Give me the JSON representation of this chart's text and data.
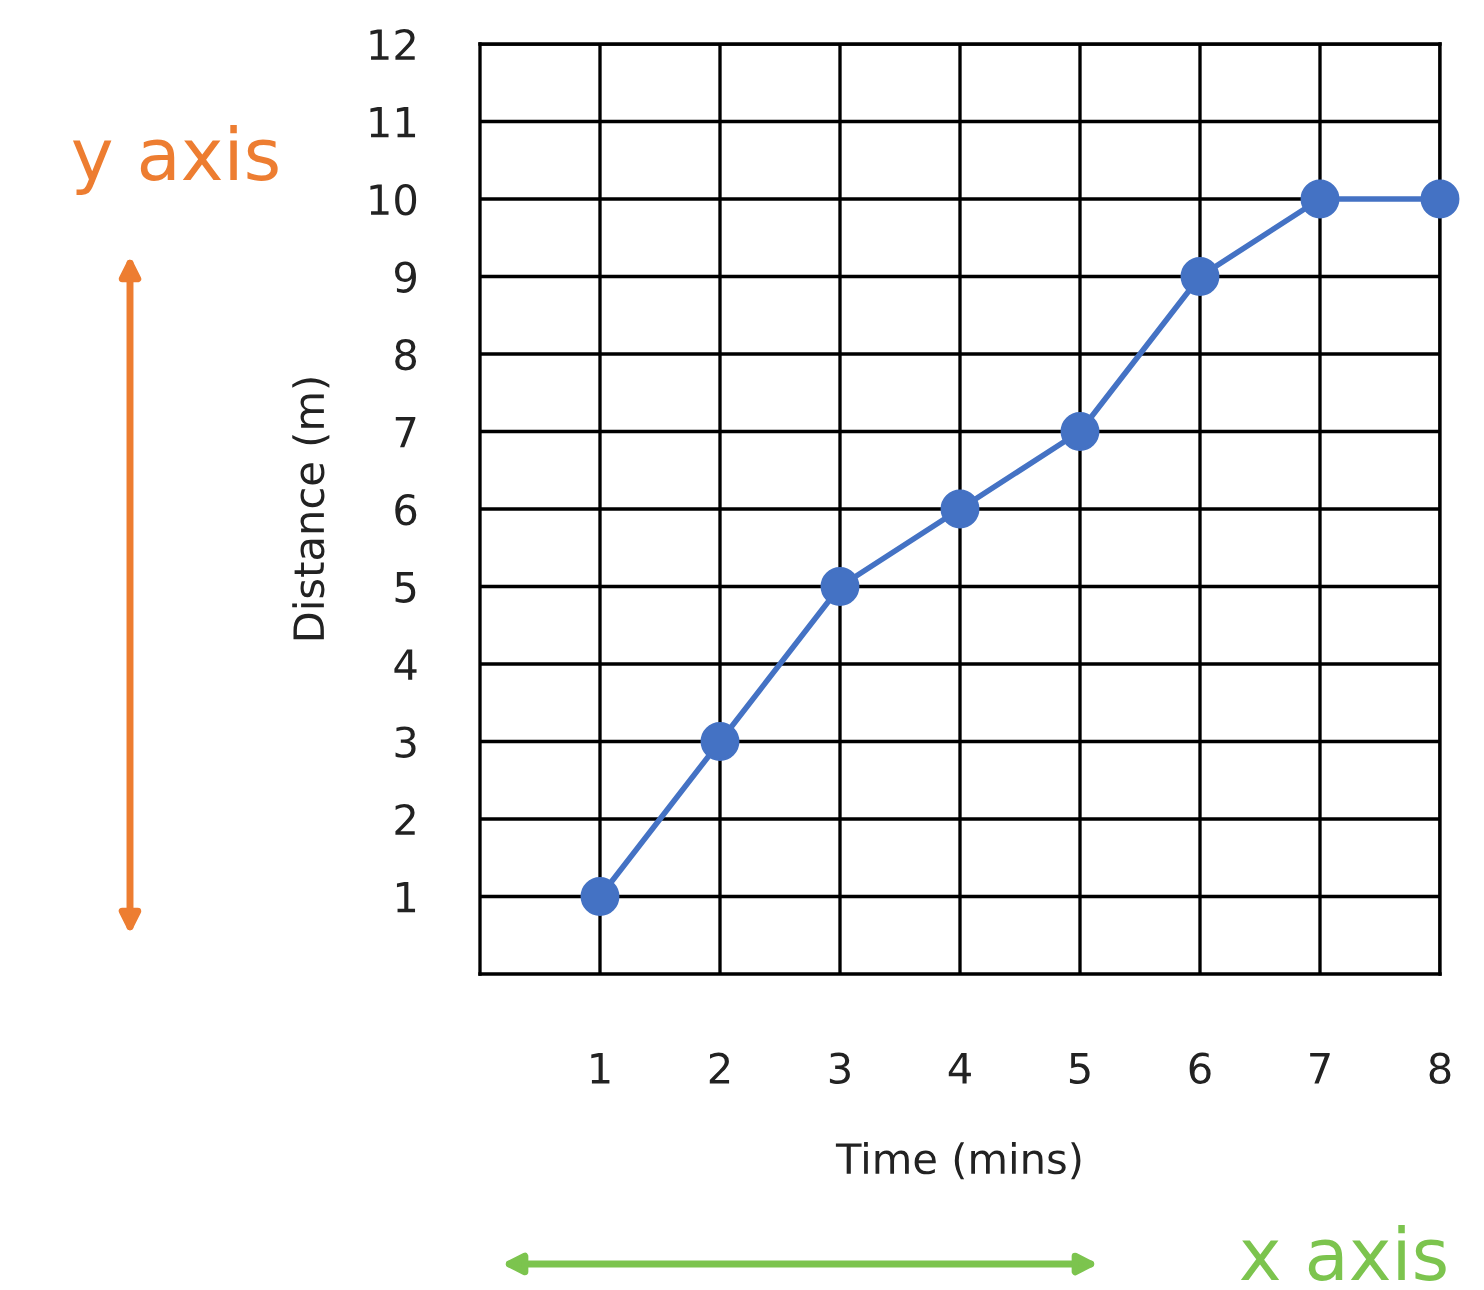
{
  "chart_data": {
    "type": "line",
    "xlabel": "Time (mins)",
    "ylabel": "Distance (m)",
    "x": [
      1,
      2,
      3,
      4,
      5,
      6,
      7,
      8
    ],
    "series": [
      {
        "color": "#4472c4",
        "values": [
          1,
          3,
          5,
          6,
          7,
          9,
          10,
          10
        ]
      }
    ],
    "xlim": [
      0,
      8
    ],
    "xticks": [
      1,
      2,
      3,
      4,
      5,
      6,
      7,
      8
    ],
    "ylim": [
      0,
      12
    ],
    "yticks": [
      1,
      2,
      3,
      4,
      5,
      6,
      7,
      8,
      9,
      10,
      11,
      12
    ],
    "grid": true,
    "marker": "circle",
    "line_style": "solid",
    "annotations": [
      "y axis",
      "x axis"
    ]
  }
}
